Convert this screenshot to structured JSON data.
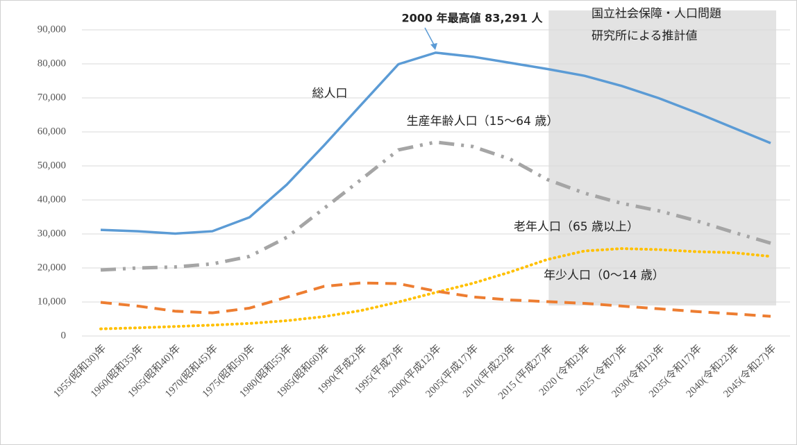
{
  "chart_data": {
    "type": "line",
    "annotations": [
      "2000 年最高値 83,291 人",
      "国立社会保障・人口問題",
      "研究所による推計値"
    ],
    "categories": [
      "1955(昭和30)年",
      "1960(昭和35)年",
      "1965(昭和40)年",
      "1970(昭和45)年",
      "1975(昭和50)年",
      "1980(昭和55)年",
      "1985(昭和60)年",
      "1990(平成2)年",
      "1995(平成7)年",
      "2000(平成12)年",
      "2005(平成17)年",
      "2010(平成22)年",
      "2015 (平成27)年",
      "2020 (令和2)年",
      "2025 (令和7)年",
      "2030(令和12)年",
      "2035(令和17)年",
      "2040(令和22)年",
      "2045(令和27)年"
    ],
    "series": [
      {
        "name": "総人口",
        "color": "#5b9bd5",
        "values": [
          31200,
          30800,
          30100,
          30800,
          34900,
          44500,
          56000,
          68000,
          79900,
          83291,
          82100,
          80300,
          78500,
          76500,
          73500,
          69900,
          65700,
          61200,
          56700
        ]
      },
      {
        "name": "生産年齢人口（15〜64 歳）",
        "color": "#a5a5a5",
        "values": [
          19400,
          20000,
          20300,
          21200,
          23400,
          29000,
          37500,
          46000,
          54700,
          57000,
          55700,
          52000,
          46000,
          42000,
          39000,
          36800,
          33900,
          30500,
          27300
        ]
      },
      {
        "name": "老年人口（65 歳以上）",
        "color": "#ffc000",
        "values": [
          2100,
          2400,
          2800,
          3200,
          3700,
          4500,
          5700,
          7500,
          10000,
          12800,
          15500,
          18800,
          22500,
          25000,
          25700,
          25400,
          24800,
          24500,
          23400
        ]
      },
      {
        "name": "年少人口（0〜14 歳）",
        "color": "#ed7d31",
        "values": [
          9900,
          8800,
          7300,
          6800,
          8200,
          11400,
          14600,
          15600,
          15400,
          13200,
          11500,
          10600,
          10100,
          9600,
          8800,
          8000,
          7200,
          6500,
          5800
        ]
      }
    ],
    "ylim": [
      0,
      90000
    ],
    "yticks": [
      0,
      {
        "value": 10000,
        "label": "10,000"
      },
      {
        "value": 20000,
        "label": "20,000"
      },
      {
        "value": 30000,
        "label": "30,000"
      },
      {
        "value": 40000,
        "label": "40,000"
      },
      {
        "value": 50000,
        "label": "50,000"
      },
      {
        "value": 60000,
        "label": "60,000"
      },
      {
        "value": 70000,
        "label": "70,000"
      },
      {
        "value": 80000,
        "label": "80,000"
      },
      {
        "value": 90000,
        "label": "90,000"
      }
    ]
  }
}
